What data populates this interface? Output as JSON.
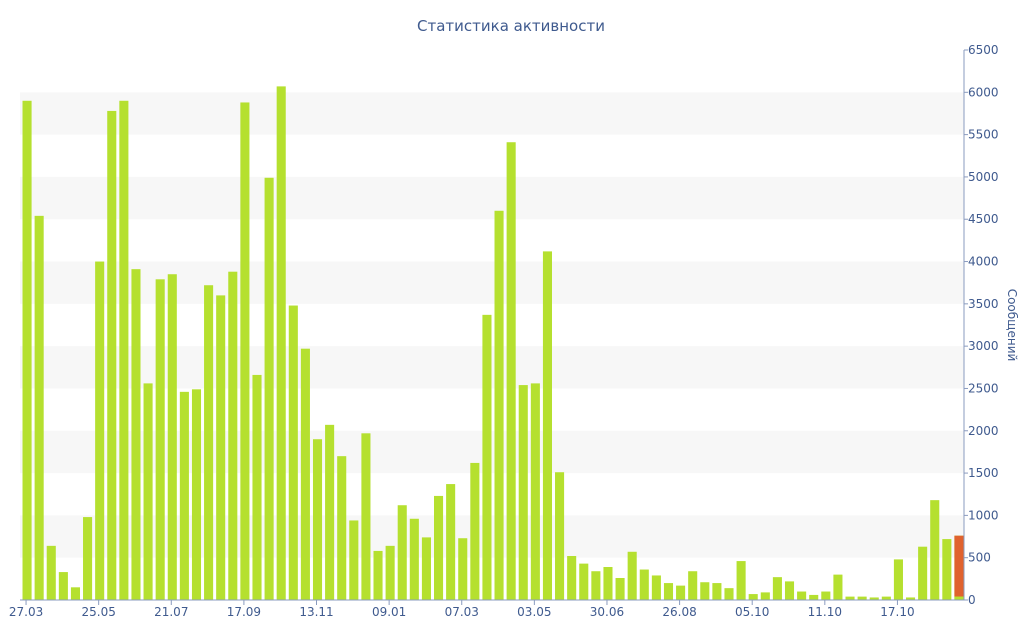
{
  "chart_data": {
    "type": "bar",
    "title": "Статистика активности",
    "xlabel": "",
    "ylabel": "Сообщений",
    "ylim": [
      0,
      6500
    ],
    "yticks": [
      0,
      500,
      1000,
      1500,
      2000,
      2500,
      3000,
      3500,
      4000,
      4500,
      5000,
      5500,
      6000,
      6500
    ],
    "grid": "alternating horizontal bands",
    "x_tick_labels": [
      {
        "label": "27.03",
        "index": 0
      },
      {
        "label": "25.05",
        "index": 6
      },
      {
        "label": "21.07",
        "index": 12
      },
      {
        "label": "17.09",
        "index": 18
      },
      {
        "label": "13.11",
        "index": 24
      },
      {
        "label": "09.01",
        "index": 30
      },
      {
        "label": "07.03",
        "index": 36
      },
      {
        "label": "03.05",
        "index": 42
      },
      {
        "label": "30.06",
        "index": 48
      },
      {
        "label": "26.08",
        "index": 54
      },
      {
        "label": "05.10",
        "index": 60
      },
      {
        "label": "11.10",
        "index": 66
      },
      {
        "label": "17.10",
        "index": 72
      }
    ],
    "colors": {
      "bar": "#b5e02f",
      "highlight": "#e0622e",
      "axis": "#8a9bbf",
      "text": "#3f5a8e",
      "band": "#f7f7f7"
    },
    "values": [
      5900,
      4540,
      640,
      330,
      150,
      980,
      4000,
      5780,
      5900,
      3910,
      2560,
      3790,
      3850,
      2460,
      2490,
      3720,
      3600,
      3880,
      5880,
      2660,
      4990,
      6070,
      3480,
      2970,
      1900,
      2070,
      1700,
      940,
      1970,
      580,
      640,
      1120,
      960,
      740,
      1230,
      1370,
      730,
      1620,
      3370,
      4600,
      5410,
      2540,
      2560,
      4120,
      1510,
      520,
      430,
      340,
      390,
      260,
      570,
      360,
      290,
      200,
      170,
      340,
      210,
      200,
      140,
      460,
      70,
      90,
      270,
      220,
      100,
      60,
      100,
      300,
      40,
      40,
      30,
      40,
      480,
      30,
      630,
      1180,
      720,
      760
    ],
    "highlight": {
      "index": 77,
      "value": 760,
      "base_value": 40
    }
  }
}
